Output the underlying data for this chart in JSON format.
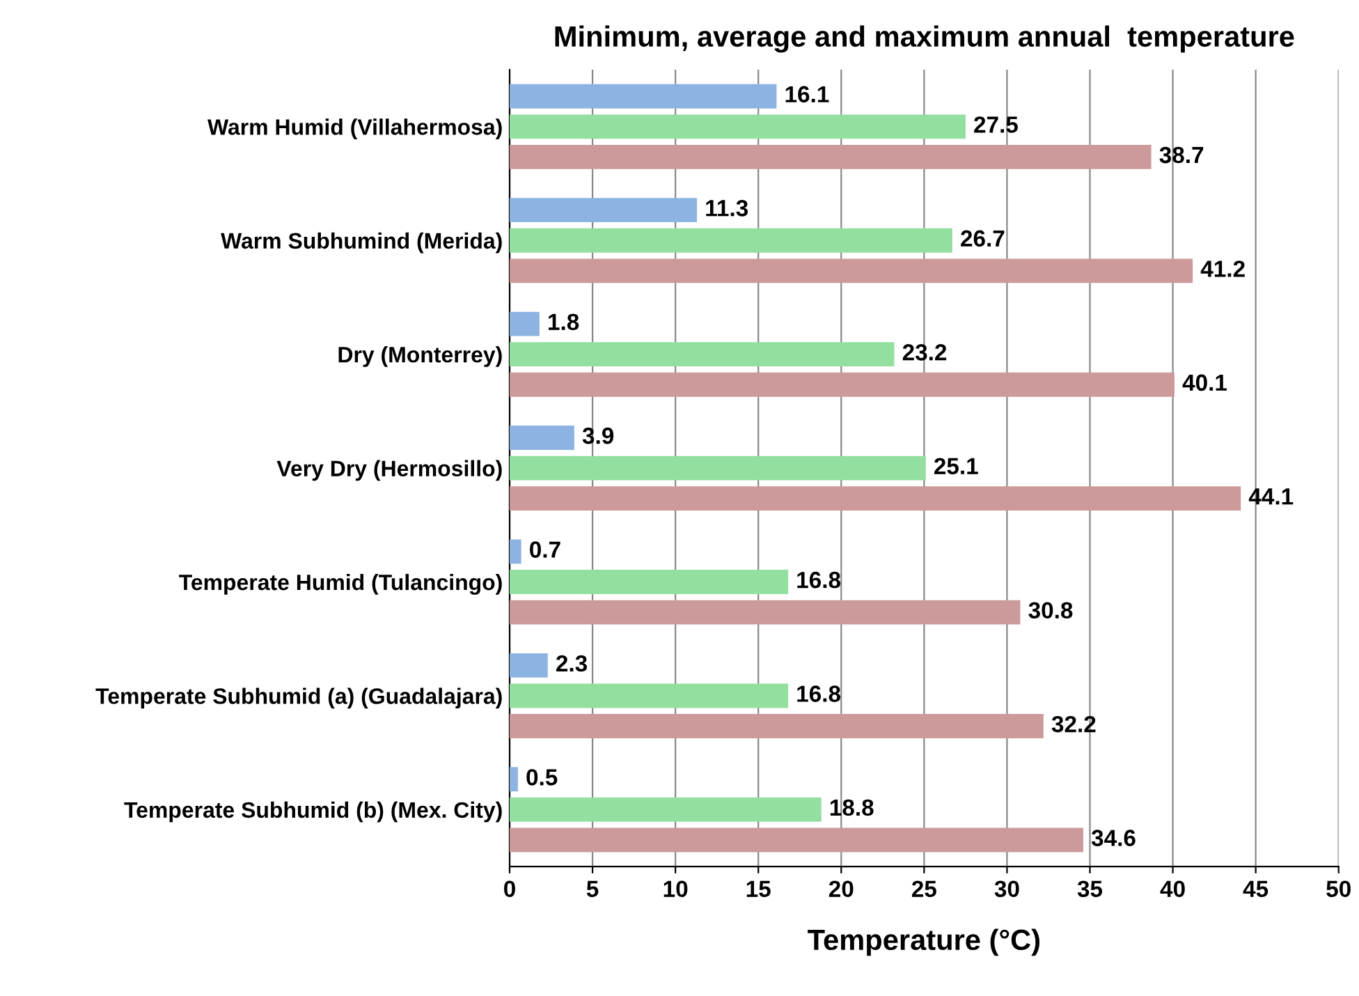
{
  "chart_data": {
    "type": "bar",
    "orientation": "horizontal",
    "title": "Minimum, average and maximum annual  temperature",
    "xlabel": "Temperature (°C)",
    "categories": [
      "Warm Humid (Villahermosa)",
      "Warm Subhumind (Merida)",
      "Dry (Monterrey)",
      "Very Dry (Hermosillo)",
      "Temperate Humid (Tulancingo)",
      "Temperate Subhumid (a) (Guadalajara)",
      "Temperate Subhumid (b) (Mex. City)"
    ],
    "series": [
      {
        "color": "#8db3e2",
        "values": [
          16.1,
          11.3,
          1.8,
          3.9,
          0.7,
          2.3,
          0.5
        ]
      },
      {
        "color": "#92dfa0",
        "values": [
          27.5,
          26.7,
          23.2,
          25.1,
          16.8,
          16.8,
          18.8
        ]
      },
      {
        "color": "#cc9a9a",
        "values": [
          38.7,
          41.2,
          40.1,
          44.1,
          30.8,
          32.2,
          34.6
        ]
      }
    ],
    "xlim": [
      0,
      50
    ],
    "xticks": [
      0,
      5,
      10,
      15,
      20,
      25,
      30,
      35,
      40,
      45,
      50
    ],
    "grid": "x",
    "legend": false,
    "data_labels": true
  }
}
